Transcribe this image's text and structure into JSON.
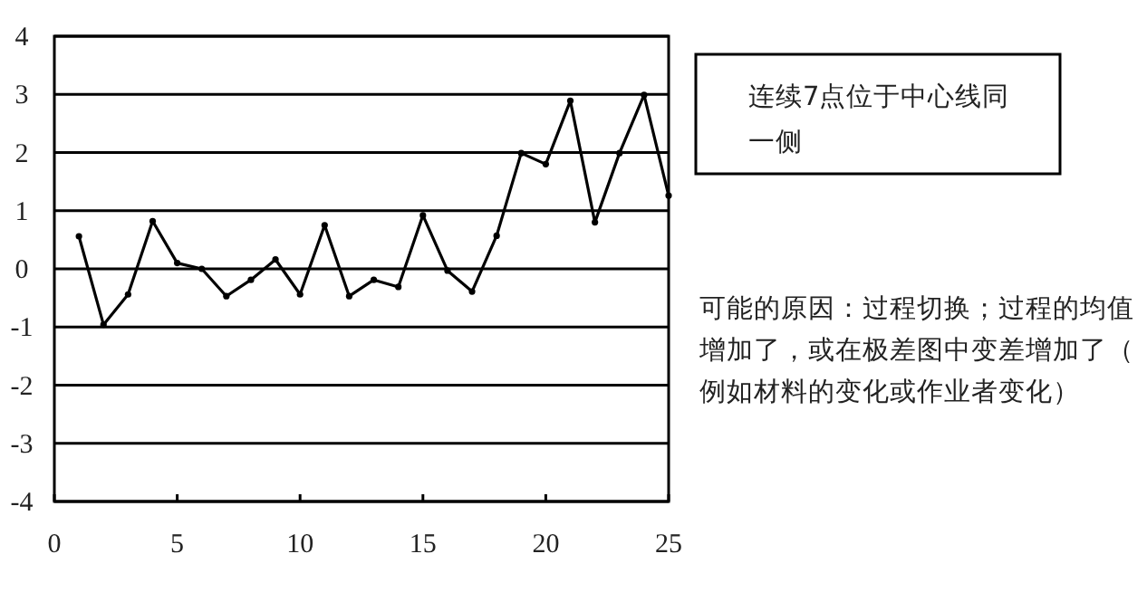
{
  "chart_data": {
    "type": "line",
    "x": [
      1,
      2,
      3,
      4,
      5,
      6,
      7,
      8,
      9,
      10,
      11,
      12,
      13,
      14,
      15,
      16,
      17,
      18,
      19,
      20,
      21,
      22,
      23,
      24,
      25
    ],
    "values": [
      0.56,
      -0.96,
      -0.44,
      0.82,
      0.1,
      0.0,
      -0.47,
      -0.19,
      0.16,
      -0.44,
      0.75,
      -0.47,
      -0.19,
      -0.31,
      0.92,
      -0.03,
      -0.39,
      0.57,
      1.99,
      1.8,
      2.89,
      0.8,
      1.99,
      2.99,
      1.26
    ],
    "color": "#000000",
    "xlim": [
      0,
      25
    ],
    "xticks": [
      0,
      5,
      10,
      15,
      20,
      25
    ],
    "ylim": [
      -4,
      4
    ],
    "yticks": [
      -4,
      -3,
      -2,
      -1,
      0,
      1,
      2,
      3,
      4
    ],
    "grid": "y",
    "marker": "circle",
    "line_style": "solid",
    "annotations": [
      "连续7点位于中心线同一侧",
      "可能的原因：过程切换；过程的均值增加了，或在极差图中变差增加了（例如材料的变化或作业者变化）"
    ]
  }
}
